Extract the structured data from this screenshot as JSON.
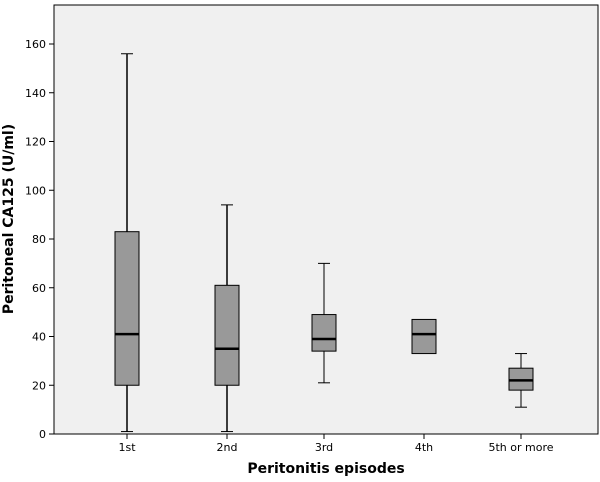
{
  "chart_data": {
    "type": "box",
    "xlabel": "Peritonitis episodes",
    "ylabel": "Peritoneal CA125 (U/ml)",
    "ylim": [
      0,
      176
    ],
    "yticks": [
      0,
      20,
      40,
      60,
      80,
      100,
      120,
      140,
      160
    ],
    "grid": false,
    "plot_background": "#f0f0f0",
    "box_color": "#999999",
    "categories": [
      "1st",
      "2nd",
      "3rd",
      "4th",
      "5th or more"
    ],
    "boxes": [
      {
        "category": "1st",
        "min": 1,
        "q1": 20,
        "median": 41,
        "q3": 83,
        "max": 156
      },
      {
        "category": "2nd",
        "min": 1,
        "q1": 20,
        "median": 35,
        "q3": 61,
        "max": 94
      },
      {
        "category": "3rd",
        "min": 21,
        "q1": 34,
        "median": 39,
        "q3": 49,
        "max": 70
      },
      {
        "category": "4th",
        "min": 33,
        "q1": 33,
        "median": 41,
        "q3": 47,
        "max": 47
      },
      {
        "category": "5th or more",
        "min": 11,
        "q1": 18,
        "median": 22,
        "q3": 27,
        "max": 33
      }
    ]
  }
}
